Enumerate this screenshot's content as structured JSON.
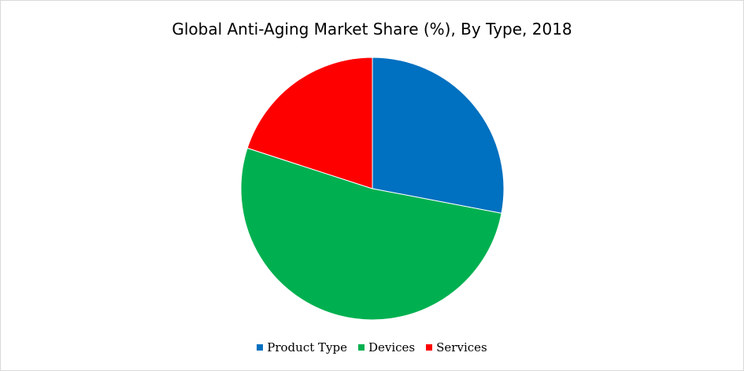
{
  "chart_data": {
    "type": "pie",
    "title": "Global Anti-Aging Market Share (%), By Type, 2018",
    "categories": [
      "Product Type",
      "Devices",
      "Services"
    ],
    "values": [
      28,
      52,
      20
    ],
    "colors": [
      "#0070C0",
      "#00B050",
      "#FF0000"
    ],
    "start_angle_deg": 0,
    "direction": "clockwise",
    "legend_position": "bottom"
  }
}
